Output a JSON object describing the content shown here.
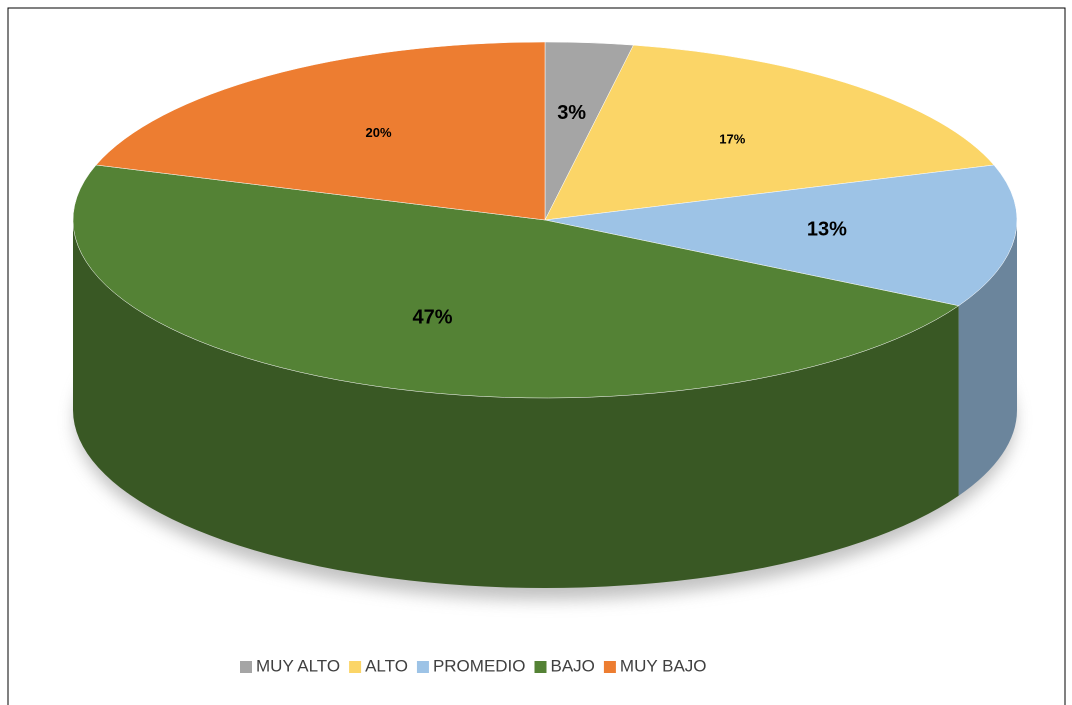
{
  "chart_data": {
    "type": "pie",
    "categories": [
      "MUY ALTO",
      "ALTO",
      "PROMEDIO",
      "BAJO",
      "MUY BAJO"
    ],
    "values": [
      3,
      17,
      13,
      47,
      20
    ],
    "value_labels": [
      "3%",
      "17%",
      "13%",
      "47%",
      "20%"
    ],
    "colors": [
      "#a5a5a5",
      "#fbd567",
      "#9dc3e6",
      "#548235",
      "#ed7d31"
    ],
    "legend": "bottom"
  }
}
